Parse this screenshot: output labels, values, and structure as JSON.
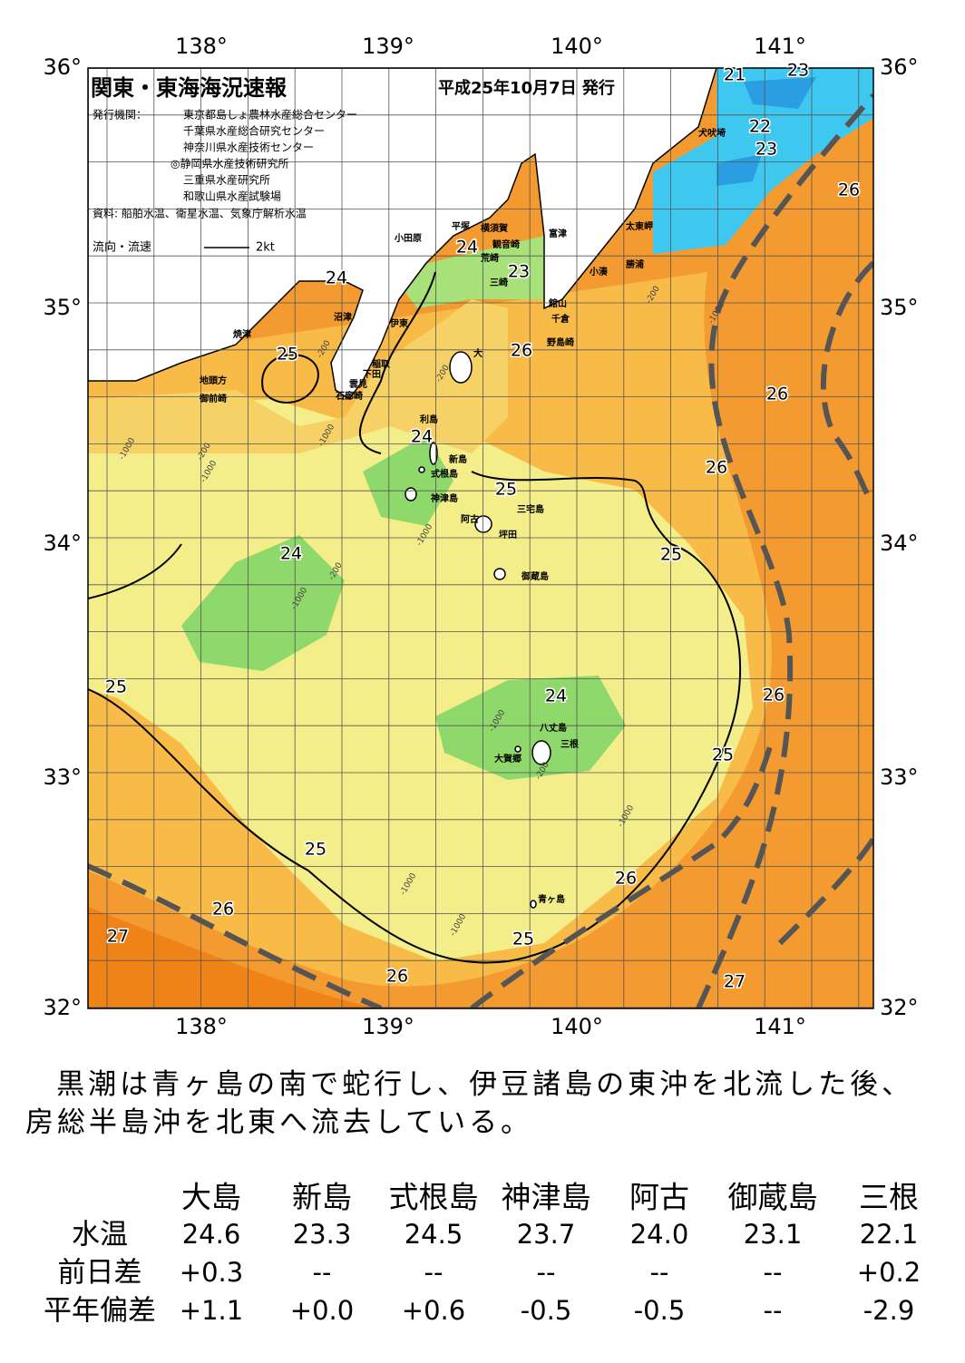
{
  "header": {
    "title": "関東・東海海況速報",
    "date": "平成25年10月7日 発行",
    "publisher_label": "発行機関：",
    "publishers": [
      "東京都島しょ農林水産総合センター",
      "千葉県水産総合研究センター",
      "神奈川県水産技術センター",
      "◎静岡県水産技術研究所",
      "三重県水産研究所",
      "和歌山県水産試験場"
    ],
    "sources": "資料: 船舶水温、衛星水温、気象庁解析水温",
    "legend_label": "流向・流速",
    "legend_scale": "2kt"
  },
  "map": {
    "lon_labels": [
      "138°",
      "139°",
      "140°",
      "141°"
    ],
    "lat_labels": [
      "36°",
      "35°",
      "34°",
      "33°",
      "32°"
    ],
    "place_names": [
      "犬吠埼",
      "太東岬",
      "勝浦",
      "小湊",
      "富津",
      "館山",
      "千倉",
      "野島崎",
      "横須賀",
      "観音崎",
      "荒崎",
      "三崎",
      "平塚",
      "小田原",
      "沼津",
      "伊東",
      "稲取",
      "下田",
      "雲見",
      "石廊崎",
      "焼津",
      "地頭方",
      "御前崎",
      "大",
      "利島",
      "新島",
      "式根島",
      "神津島",
      "三宅島",
      "阿古",
      "坪田",
      "御蔵島",
      "八丈島",
      "三根",
      "大賀郷",
      "青ヶ島"
    ],
    "isotherm_labels": [
      "21",
      "23",
      "22",
      "23",
      "26",
      "24",
      "23",
      "24",
      "26",
      "25",
      "26",
      "24",
      "26",
      "25",
      "25",
      "24",
      "25",
      "24",
      "26",
      "25",
      "25",
      "26",
      "26",
      "27",
      "25",
      "26",
      "27"
    ],
    "isobath_labels": [
      "-200",
      "-1000",
      "-200",
      "-1000",
      "-1000",
      "-200",
      "-1000",
      "-200",
      "-1000",
      "-1000",
      "-200",
      "-1000",
      "-1000",
      "-1000",
      "-200",
      "-1000"
    ]
  },
  "description": "黒潮は青ヶ島の南で蛇行し、伊豆諸島の東沖を北流した後、房総半島沖を北東へ流去している。",
  "table": {
    "columns": [
      "大島",
      "新島",
      "式根島",
      "神津島",
      "阿古",
      "御蔵島",
      "三根"
    ],
    "rows": [
      {
        "label": "水温",
        "cells": [
          "24.6",
          "23.3",
          "24.5",
          "23.7",
          "24.0",
          "23.1",
          "22.1"
        ]
      },
      {
        "label": "前日差",
        "cells": [
          "+0.3",
          "--",
          "--",
          "--",
          "--",
          "--",
          "+0.2"
        ]
      },
      {
        "label": "平年偏差",
        "cells": [
          "+1.1",
          "+0.0",
          "+0.6",
          "-0.5",
          "-0.5",
          "--",
          "-2.9"
        ]
      }
    ]
  }
}
